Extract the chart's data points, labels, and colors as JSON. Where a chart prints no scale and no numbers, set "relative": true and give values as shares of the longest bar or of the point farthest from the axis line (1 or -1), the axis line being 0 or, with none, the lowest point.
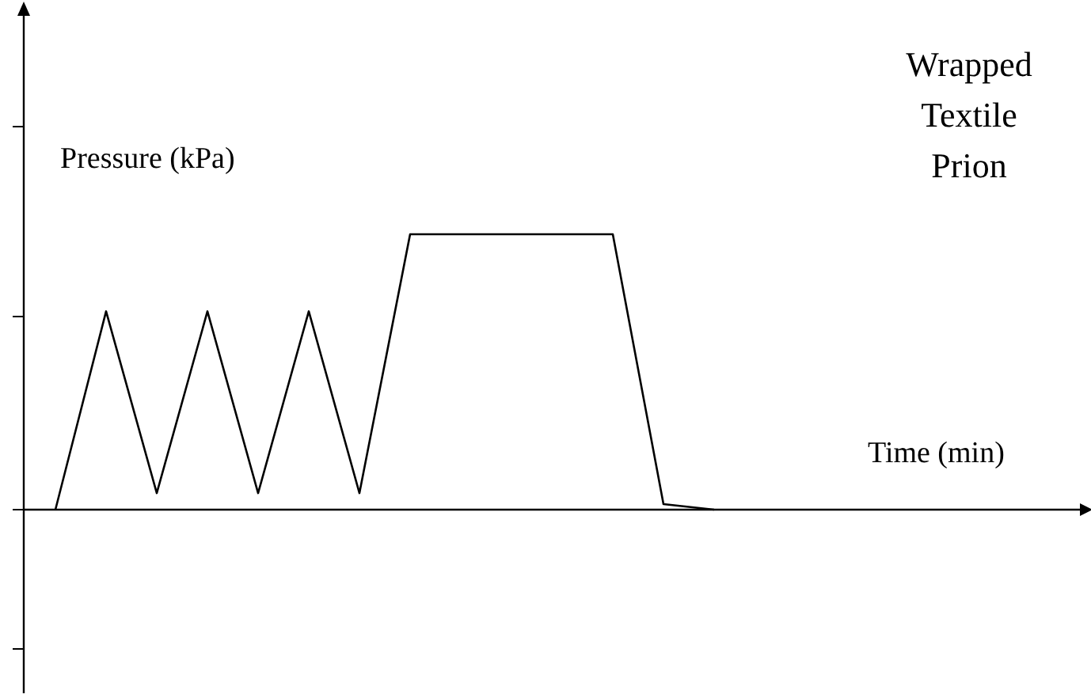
{
  "chart_data": {
    "type": "line",
    "title": "Wrapped\nTextile\nPrion",
    "xlabel": "Time (min)",
    "ylabel": "Pressure (kPa)",
    "relative": true,
    "categories": [
      null,
      null,
      null,
      null,
      null,
      null,
      null,
      null,
      null,
      null,
      null,
      null,
      null,
      null
    ],
    "series": [
      {
        "color": "#000000",
        "values": [
          0,
          0.72,
          0.06,
          0.72,
          0.06,
          0.72,
          0.06,
          1,
          1,
          1,
          1,
          1,
          0.02,
          0
        ]
      }
    ],
    "marker": "none",
    "line_style": "solid"
  }
}
